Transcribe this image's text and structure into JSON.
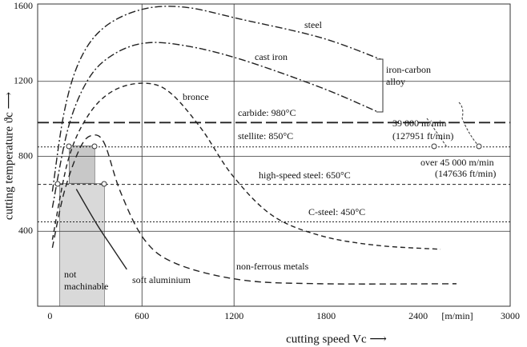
{
  "chart_data": {
    "type": "line",
    "xlabel": "cutting speed Vc ⟶",
    "ylabel": "cutting temperature ϑc ⟶",
    "x_unit": "[m/min]",
    "xlim": [
      -80,
      3000
    ],
    "ylim": [
      0,
      1600
    ],
    "xticks": [
      0,
      600,
      1200,
      1800,
      2400,
      3000
    ],
    "yticks": [
      400,
      800,
      1200,
      1600
    ],
    "grid": true,
    "series": [
      {
        "name": "steel",
        "color": "#222",
        "dash": "9,3,2,3",
        "x": [
          16,
          94,
          198,
          355,
          600,
          877,
          1242,
          1763,
          2155
        ],
        "values": [
          612,
          1040,
          1318,
          1489,
          1584,
          1596,
          1532,
          1434,
          1318
        ]
      },
      {
        "name": "cast iron",
        "color": "#222",
        "dash": "9,3,2,3",
        "x": [
          16,
          120,
          250,
          407,
          616,
          877,
          1242,
          1763,
          2129
        ],
        "values": [
          526,
          954,
          1211,
          1340,
          1404,
          1391,
          1318,
          1168,
          1040
        ]
      },
      {
        "name": "bronce",
        "color": "#222",
        "dash": "6,4",
        "x": [
          16,
          120,
          250,
          407,
          600,
          772,
          981,
          1190,
          1450,
          1763,
          2129,
          2546
        ],
        "values": [
          355,
          783,
          1019,
          1147,
          1190,
          1147,
          954,
          698,
          484,
          377,
          325,
          304
        ]
      },
      {
        "name": "non-ferrous metals",
        "color": "#222",
        "dash": "8,5",
        "x": [
          16,
          94,
          198,
          277,
          355,
          459,
          616,
          824,
          1242,
          1763,
          2650
        ],
        "values": [
          312,
          612,
          847,
          912,
          869,
          612,
          355,
          227,
          141,
          120,
          120
        ]
      },
      {
        "name": "soft aluminium",
        "color": "#222",
        "dash": "",
        "x": [
          172,
          303,
          407,
          501
        ],
        "values": [
          625,
          441,
          312,
          197
        ]
      }
    ],
    "hlines": [
      {
        "name": "carbide: 980°C",
        "value": 980,
        "dash": "14,5",
        "width": 1.8
      },
      {
        "name": "stellite: 850°C",
        "value": 850,
        "dash": "2,2",
        "width": 1
      },
      {
        "name": "high-speed steel: 650°C",
        "value": 650,
        "dash": "4,3",
        "width": 1
      },
      {
        "name": "C-steel: 450°C",
        "value": 450,
        "dash": "2,2",
        "width": 1
      }
    ],
    "regions": [
      {
        "x": [
          63,
          355
        ],
        "y": [
          0,
          655
        ],
        "color": "#d9d9d9"
      },
      {
        "x": [
          125,
          292
        ],
        "y": [
          656,
          856
        ],
        "color": "#c8c8c8"
      }
    ],
    "annotations": [
      [
        "iron-carbon",
        "alloy"
      ],
      [
        "39 000 m/min",
        "(127951 ft/min)"
      ],
      [
        "over 45 000 m/min",
        "(147636 ft/min)"
      ],
      [
        "not",
        "machinable"
      ]
    ]
  }
}
